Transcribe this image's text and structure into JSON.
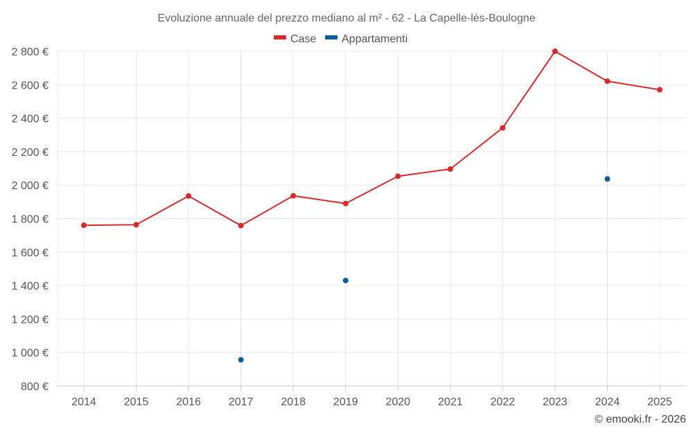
{
  "chart_data": {
    "type": "line",
    "title": "Evoluzione annuale del prezzo mediano al m² - 62 - La Capelle-lès-Boulogne",
    "categories": [
      "2014",
      "2015",
      "2016",
      "2017",
      "2018",
      "2019",
      "2020",
      "2021",
      "2022",
      "2023",
      "2024",
      "2025"
    ],
    "ylim": [
      800,
      2800
    ],
    "yticks": [
      800,
      1000,
      1200,
      1400,
      1600,
      1800,
      2000,
      2200,
      2400,
      2600,
      2800
    ],
    "ytick_labels": [
      "800 €",
      "1 000 €",
      "1 200 €",
      "1 400 €",
      "1 600 €",
      "1 800 €",
      "2 000 €",
      "2 200 €",
      "2 400 €",
      "2 600 €",
      "2 800 €"
    ],
    "grid": true,
    "legend_position": "top-center",
    "series": [
      {
        "name": "Case",
        "color": "#d42a2a",
        "style": "line-markers",
        "values": [
          1760,
          1763,
          1935,
          1758,
          1936,
          1890,
          2053,
          2096,
          2342,
          2800,
          2621,
          2570
        ]
      },
      {
        "name": "Appartamenti",
        "color": "#0a5e93",
        "style": "markers",
        "values": [
          null,
          null,
          null,
          956,
          null,
          1430,
          null,
          null,
          null,
          null,
          2037,
          null
        ]
      }
    ]
  },
  "credit": "© emooki.fr - 2026"
}
